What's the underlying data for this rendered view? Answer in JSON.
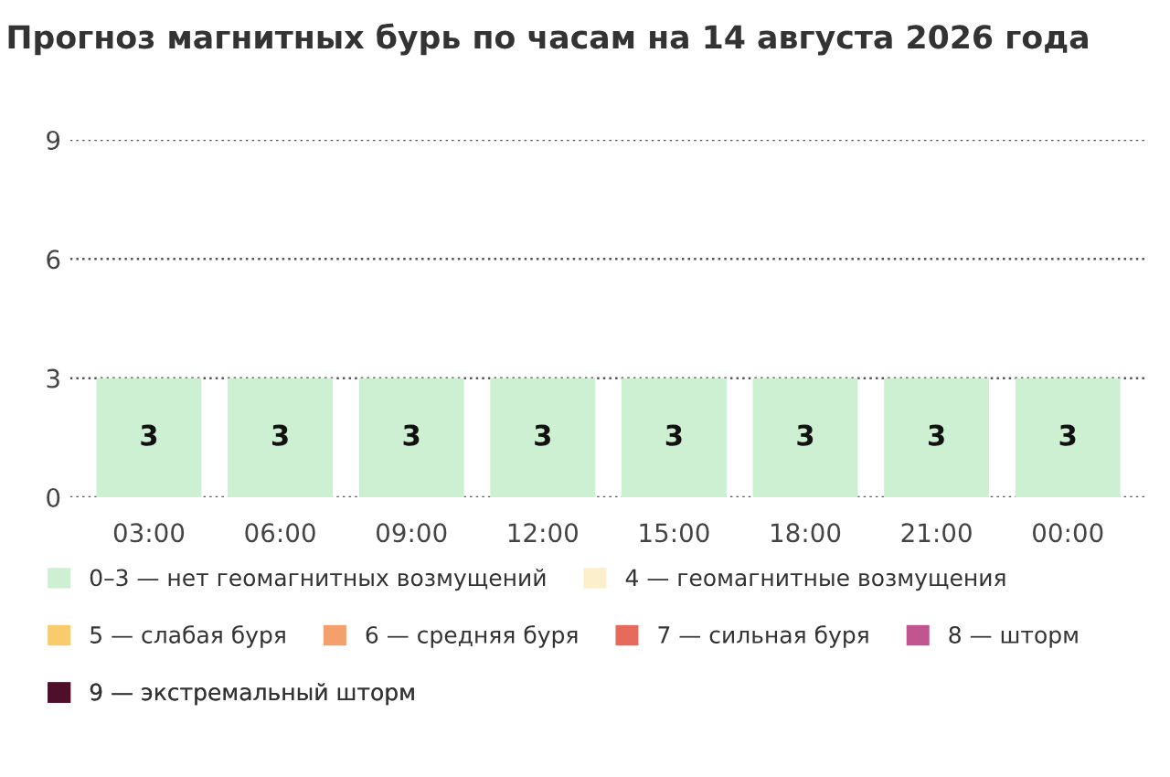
{
  "chart_data": {
    "type": "bar",
    "title": "Прогноз магнитных бурь по часам на 14 августа 2026 года",
    "categories": [
      "03:00",
      "06:00",
      "09:00",
      "12:00",
      "15:00",
      "18:00",
      "21:00",
      "00:00"
    ],
    "series": [
      {
        "name": "0–3 — нет геомагнитных возмущений",
        "color": "#cdefd2",
        "values": [
          3,
          3,
          3,
          3,
          3,
          3,
          3,
          3
        ]
      },
      {
        "name": "4 — геомагнитные возмущения",
        "color": "#fcefcb",
        "values": [
          null,
          null,
          null,
          null,
          null,
          null,
          null,
          null
        ]
      },
      {
        "name": "5 — слабая буря",
        "color": "#f8cc6c",
        "values": [
          null,
          null,
          null,
          null,
          null,
          null,
          null,
          null
        ]
      },
      {
        "name": "6 — средняя буря",
        "color": "#f3a06c",
        "values": [
          null,
          null,
          null,
          null,
          null,
          null,
          null,
          null
        ]
      },
      {
        "name": "7 — сильная буря",
        "color": "#e66a5c",
        "values": [
          null,
          null,
          null,
          null,
          null,
          null,
          null,
          null
        ]
      },
      {
        "name": "8 — шторм",
        "color": "#c0548e",
        "values": [
          null,
          null,
          null,
          null,
          null,
          null,
          null,
          null
        ]
      },
      {
        "name": "9 — экстремальный шторм",
        "color": "#4f0f2a",
        "values": [
          null,
          null,
          null,
          null,
          null,
          null,
          null,
          null
        ]
      }
    ],
    "ylim": [
      0,
      9
    ],
    "yticks": [
      0,
      3,
      6,
      9
    ],
    "grid": "y",
    "data_labels": true,
    "legend": "bottom"
  }
}
